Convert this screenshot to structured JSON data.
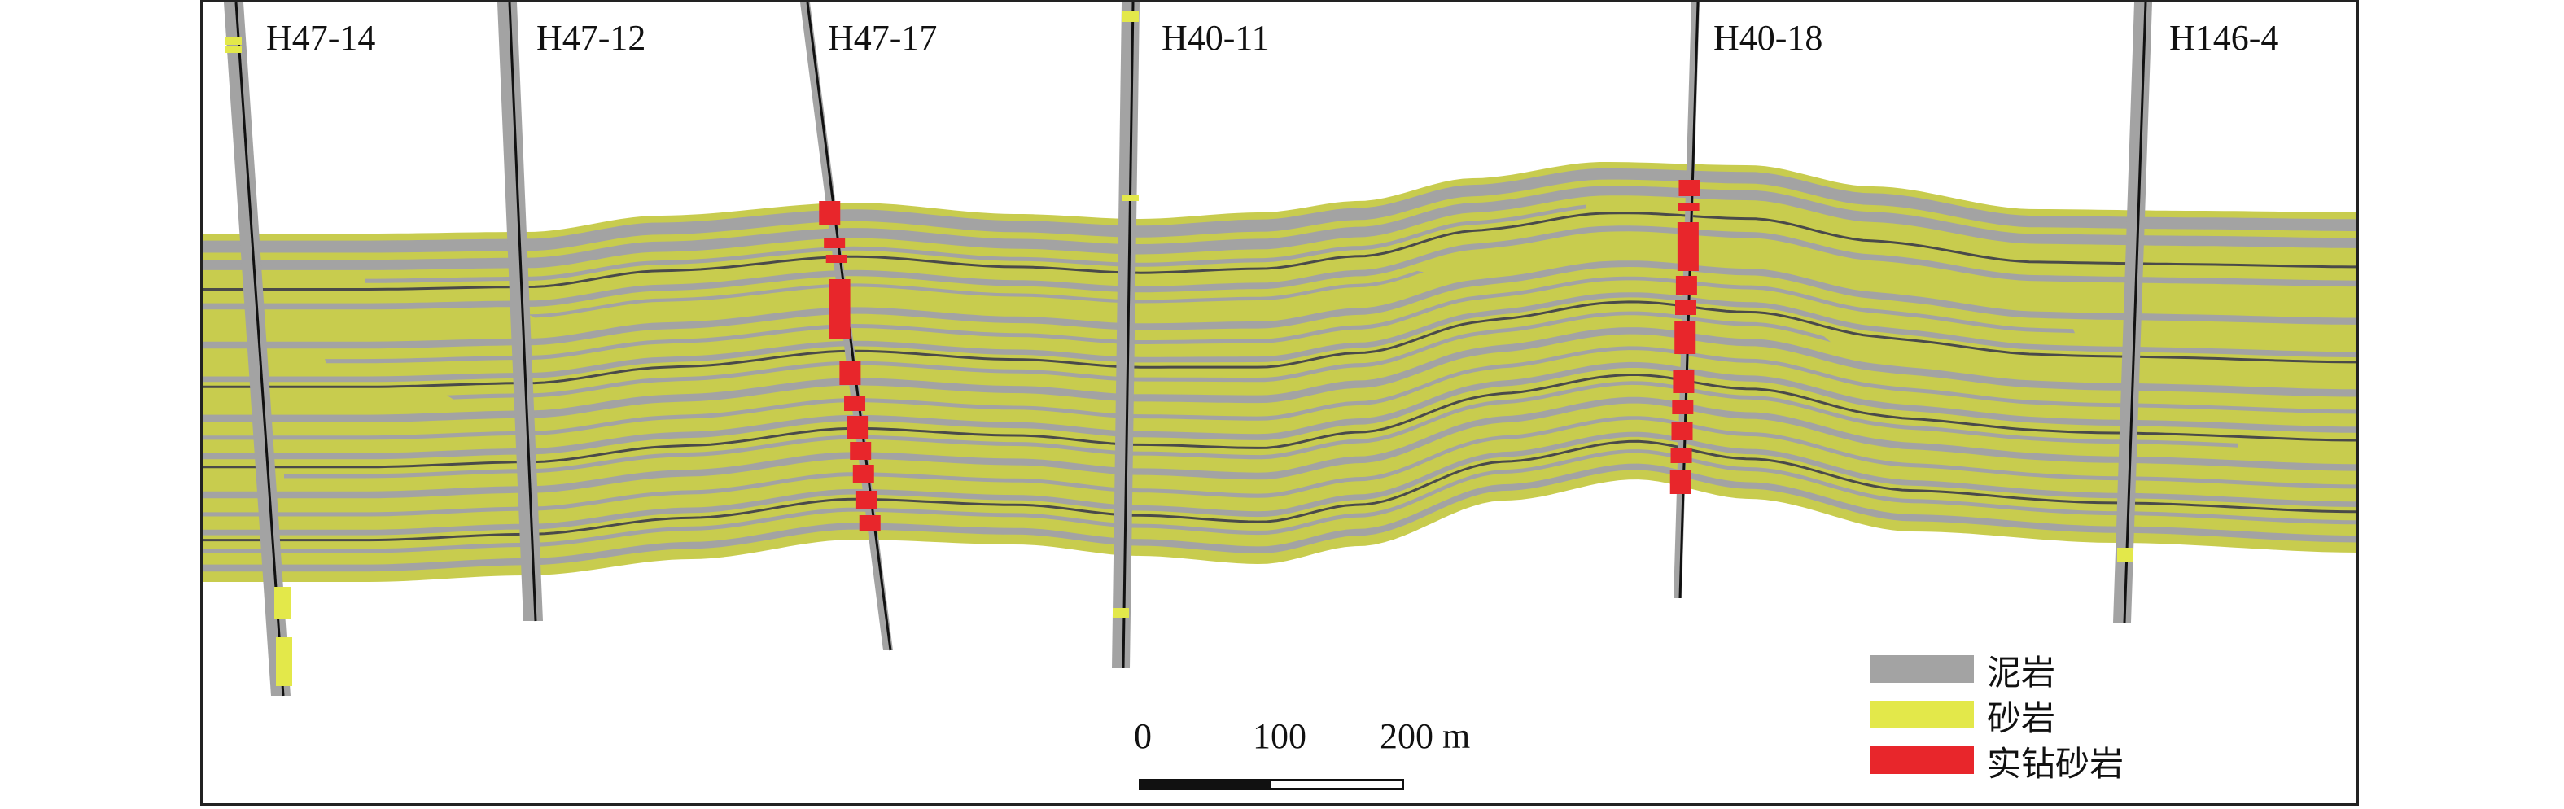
{
  "wells": [
    {
      "name": "H47-14"
    },
    {
      "name": "H47-12"
    },
    {
      "name": "H47-17"
    },
    {
      "name": "H40-11"
    },
    {
      "name": "H40-18"
    },
    {
      "name": "H146-4"
    }
  ],
  "legend": {
    "items": [
      {
        "label": "泥岩",
        "color": "#a3a3a3"
      },
      {
        "label": "砂岩",
        "color": "#e3e84a"
      },
      {
        "label": "实钻砂岩",
        "color": "#e8262b"
      }
    ]
  },
  "scale_bar": {
    "ticks": [
      "0",
      "100",
      "200 m"
    ]
  },
  "colors": {
    "mudstone": "#a3a3a3",
    "sandstone": "#c8cc4e",
    "sandstone_bright": "#e3e84a",
    "drilled_sandstone": "#e8262b",
    "well_trace": "#111111"
  }
}
